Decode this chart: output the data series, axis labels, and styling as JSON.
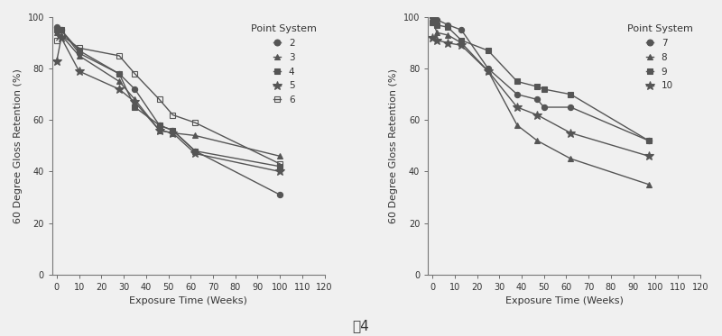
{
  "left": {
    "title": "Point System",
    "ylabel": "60 Degree Gloss Retention (%)",
    "xlabel": "Exposure Time (Weeks)",
    "xlim": [
      -2,
      120
    ],
    "ylim": [
      0,
      100
    ],
    "xticks": [
      0,
      10,
      20,
      30,
      40,
      50,
      60,
      70,
      80,
      90,
      100,
      110,
      120
    ],
    "yticks": [
      0,
      20,
      40,
      60,
      80,
      100
    ],
    "series": [
      {
        "label": "2",
        "marker": "o",
        "fillstyle": "full",
        "x": [
          0,
          2,
          10,
          28,
          35,
          46,
          52,
          62,
          100
        ],
        "y": [
          96,
          95,
          86,
          78,
          72,
          58,
          56,
          48,
          31
        ]
      },
      {
        "label": "3",
        "marker": "^",
        "fillstyle": "full",
        "x": [
          0,
          2,
          10,
          28,
          35,
          46,
          52,
          62,
          100
        ],
        "y": [
          94,
          93,
          85,
          75,
          68,
          56,
          55,
          54,
          46
        ]
      },
      {
        "label": "4",
        "marker": "s",
        "fillstyle": "full",
        "x": [
          0,
          2,
          10,
          28,
          35,
          46,
          52,
          62,
          100
        ],
        "y": [
          95,
          95,
          87,
          78,
          65,
          58,
          56,
          48,
          42
        ]
      },
      {
        "label": "5",
        "marker": "*",
        "fillstyle": "full",
        "x": [
          0,
          2,
          10,
          28,
          35,
          46,
          52,
          62,
          100
        ],
        "y": [
          83,
          92,
          79,
          72,
          67,
          56,
          55,
          47,
          40
        ]
      },
      {
        "label": "6",
        "marker": "s",
        "fillstyle": "none",
        "x": [
          0,
          2,
          10,
          28,
          35,
          46,
          52,
          62,
          100
        ],
        "y": [
          91,
          93,
          88,
          85,
          78,
          68,
          62,
          59,
          43
        ]
      }
    ]
  },
  "right": {
    "title": "Point System",
    "ylabel": "60 Degree Gloss Retention (%)",
    "xlabel": "Exposure Time (Weeks)",
    "xlim": [
      -2,
      120
    ],
    "ylim": [
      0,
      100
    ],
    "xticks": [
      0,
      10,
      20,
      30,
      40,
      50,
      60,
      70,
      80,
      90,
      100,
      110,
      120
    ],
    "yticks": [
      0,
      20,
      40,
      60,
      80,
      100
    ],
    "series": [
      {
        "label": "7",
        "marker": "o",
        "fillstyle": "full",
        "x": [
          0,
          2,
          7,
          13,
          25,
          38,
          47,
          50,
          62,
          97
        ],
        "y": [
          100,
          99,
          97,
          95,
          80,
          70,
          68,
          65,
          65,
          52
        ]
      },
      {
        "label": "8",
        "marker": "^",
        "fillstyle": "full",
        "x": [
          0,
          2,
          7,
          13,
          25,
          38,
          47,
          62,
          97
        ],
        "y": [
          99,
          94,
          93,
          90,
          79,
          58,
          52,
          45,
          35
        ]
      },
      {
        "label": "9",
        "marker": "s",
        "fillstyle": "full",
        "x": [
          0,
          2,
          7,
          13,
          25,
          38,
          47,
          50,
          62,
          97
        ],
        "y": [
          98,
          97,
          96,
          91,
          87,
          75,
          73,
          72,
          70,
          52
        ]
      },
      {
        "label": "10",
        "marker": "*",
        "fillstyle": "full",
        "x": [
          0,
          2,
          7,
          13,
          25,
          38,
          47,
          62,
          97
        ],
        "y": [
          92,
          91,
          90,
          89,
          79,
          65,
          62,
          55,
          46
        ]
      }
    ]
  },
  "figure_label": "图4",
  "bg_color": "#f0f0f0",
  "line_color": "#555555",
  "linewidth": 1.0,
  "markersize": 4.5
}
